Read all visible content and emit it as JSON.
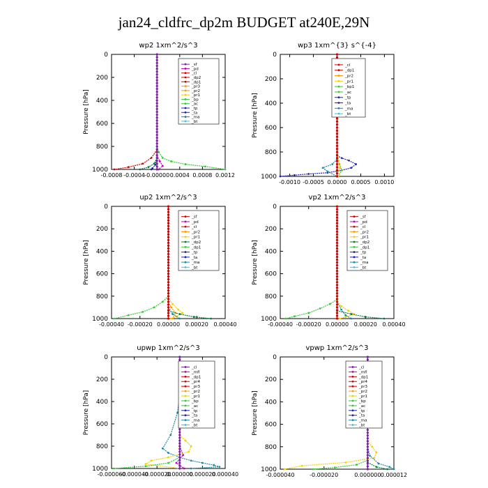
{
  "title": "jan24_cldfrc_dp2m  BUDGET at240E,29N",
  "colors": {
    "purple": "#7a1fa2",
    "magenta": "#c000c0",
    "red": "#d40000",
    "orange": "#ff9a00",
    "yellow": "#f2d000",
    "green": "#33cc33",
    "darkgreen": "#007a3d",
    "blue": "#2020c0",
    "teal": "#1a8aa0",
    "cyan": "#33c8e8"
  },
  "chart_data": [
    {
      "type": "line",
      "title": "wp2   1xm^2/s^3",
      "ylabel": "Pressure  [hPa]",
      "xlim": [
        -0.0008,
        0.0012
      ],
      "ylim": [
        1000,
        0
      ],
      "xticks": [
        "-0.0008",
        "-0.0004",
        "-0.00000",
        "0.0004",
        "0.0008",
        "0.0012"
      ],
      "xtick_values": [
        -0.0008,
        -0.0004,
        0,
        0.0004,
        0.0008,
        0.0012
      ],
      "yticks": [
        "0",
        "200",
        "400",
        "600",
        "800",
        "1000"
      ],
      "legend": [
        "_sf",
        "_pd",
        "_cl",
        "_dp2",
        "_dp1",
        "_pr3",
        "_pr2",
        "_pr1",
        "_bp",
        "_ac",
        "_tp",
        "_ta",
        "_ma",
        "_bt"
      ],
      "legend_colors": [
        "purple",
        "magenta",
        "red",
        "red",
        "red",
        "orange",
        "orange",
        "yellow",
        "green",
        "green",
        "blue",
        "blue",
        "teal",
        "cyan"
      ],
      "series": [
        {
          "color": "green",
          "x": [
            0,
            3e-05,
            0.0001,
            0.00025,
            0.0005,
            0.00085,
            0.0012
          ],
          "y": [
            800,
            850,
            900,
            930,
            955,
            975,
            1000
          ]
        },
        {
          "color": "red",
          "x": [
            0,
            -0.0001,
            -0.00025,
            -0.0005,
            -0.00075
          ],
          "y": [
            830,
            900,
            950,
            980,
            1000
          ]
        },
        {
          "color": "darkgreen",
          "x": [
            0,
            -5e-05,
            -0.00015,
            -0.0003
          ],
          "y": [
            900,
            950,
            980,
            1000
          ]
        },
        {
          "color": "magenta",
          "x": [
            0,
            5e-05,
            0.0001,
            3e-05
          ],
          "y": [
            880,
            930,
            970,
            1000
          ]
        },
        {
          "color": "blue",
          "x": [
            0,
            -3e-05,
            -8e-05,
            -0.0001
          ],
          "y": [
            900,
            960,
            990,
            1000
          ]
        },
        {
          "color": "purple",
          "x": [
            0,
            0,
            0,
            0
          ],
          "y": [
            0,
            400,
            800,
            1000
          ]
        }
      ]
    },
    {
      "type": "line",
      "title": "wp3   1xm^{3} s^{-4}",
      "ylabel": "Pressure  [hPa]",
      "xlim": [
        -0.0012,
        0.0012
      ],
      "ylim": [
        1000,
        0
      ],
      "xticks": [
        "-0.0010",
        "-0.0005",
        "0.0000",
        "0.0005",
        "0.0010"
      ],
      "xtick_values": [
        -0.001,
        -0.0005,
        0,
        0.0005,
        0.001
      ],
      "yticks": [
        "0",
        "200",
        "400",
        "600",
        "800",
        "1000"
      ],
      "legend": [
        "_cl",
        "_dp1",
        "_pr2",
        "_pr1",
        "_bp1",
        "_ac",
        "_tp",
        "_ta",
        "_ma",
        "_bt"
      ],
      "legend_colors": [
        "red",
        "red",
        "orange",
        "yellow",
        "green",
        "green",
        "blue",
        "blue",
        "teal",
        "cyan"
      ],
      "series": [
        {
          "color": "blue",
          "x": [
            0,
            0.0001,
            0.00025,
            0.0004,
            0.0003,
            0.0001,
            -0.0002,
            -0.0006,
            -0.0009,
            -0.0012
          ],
          "y": [
            830,
            850,
            870,
            900,
            930,
            950,
            970,
            980,
            990,
            1000
          ]
        },
        {
          "color": "teal",
          "x": [
            0,
            -0.0001,
            -0.0003,
            -0.0002,
            0
          ],
          "y": [
            860,
            900,
            930,
            960,
            1000
          ]
        },
        {
          "color": "green",
          "x": [
            0,
            5e-05,
            0.0001,
            3e-05
          ],
          "y": [
            850,
            900,
            950,
            1000
          ]
        },
        {
          "color": "yellow",
          "x": [
            0,
            3e-05,
            6e-05,
            2e-05
          ],
          "y": [
            800,
            870,
            930,
            1000
          ]
        },
        {
          "color": "red",
          "x": [
            0,
            0,
            0,
            0
          ],
          "y": [
            0,
            400,
            800,
            1000
          ]
        }
      ]
    },
    {
      "type": "line",
      "title": "up2   1xm^2/s^3",
      "ylabel": "Pressure  [hPa]",
      "xlim": [
        -0.0004,
        0.0004
      ],
      "ylim": [
        1000,
        0
      ],
      "xticks": [
        "-0.00040",
        "-0.00020",
        "0.00000",
        "0.00020",
        "0.00040"
      ],
      "xtick_values": [
        -0.0004,
        -0.0002,
        0,
        0.0002,
        0.0004
      ],
      "yticks": [
        "0",
        "200",
        "400",
        "600",
        "800",
        "1000"
      ],
      "legend": [
        "_sf",
        "_pd",
        "_cl",
        "_pr2",
        "_pr1",
        "_dp2",
        "_dp1",
        "_tp",
        "_ta",
        "_ma",
        "_bt"
      ],
      "legend_colors": [
        "red",
        "magenta",
        "red",
        "orange",
        "yellow",
        "darkgreen",
        "green",
        "blue",
        "blue",
        "teal",
        "cyan"
      ],
      "series": [
        {
          "color": "green",
          "x": [
            0,
            -4e-05,
            -0.0001,
            -0.00018,
            -0.00028,
            -0.00038
          ],
          "y": [
            800,
            850,
            900,
            940,
            970,
            1000
          ]
        },
        {
          "color": "yellow",
          "x": [
            0,
            3e-05,
            7e-05,
            0.0001,
            6e-05,
            2e-05
          ],
          "y": [
            820,
            870,
            920,
            950,
            980,
            1000
          ]
        },
        {
          "color": "orange",
          "x": [
            0,
            2e-05,
            5e-05,
            3e-05
          ],
          "y": [
            850,
            900,
            950,
            1000
          ]
        },
        {
          "color": "darkgreen",
          "x": [
            0,
            8e-05,
            0.00018,
            0.0003
          ],
          "y": [
            930,
            960,
            985,
            1000
          ]
        },
        {
          "color": "teal",
          "x": [
            0,
            3e-05,
            8e-05
          ],
          "y": [
            900,
            960,
            1000
          ]
        },
        {
          "color": "red",
          "x": [
            0,
            0,
            0,
            0
          ],
          "y": [
            0,
            400,
            800,
            1000
          ]
        }
      ]
    },
    {
      "type": "line",
      "title": "vp2   1xm^2/s^3",
      "ylabel": "Pressure  [hPa]",
      "xlim": [
        -0.0004,
        0.0004
      ],
      "ylim": [
        1000,
        0
      ],
      "xticks": [
        "-0.00040",
        "-0.00020",
        "0.00000",
        "0.00020",
        "0.00040"
      ],
      "xtick_values": [
        -0.0004,
        -0.0002,
        0,
        0.0002,
        0.0004
      ],
      "yticks": [
        "0",
        "200",
        "400",
        "600",
        "800",
        "1000"
      ],
      "legend": [
        "_sf",
        "_pd",
        "_cl",
        "_pr2",
        "_pr1",
        "_dp2",
        "_dp1",
        "_tp",
        "_ta",
        "_ma",
        "_bt"
      ],
      "legend_colors": [
        "red",
        "magenta",
        "red",
        "orange",
        "yellow",
        "darkgreen",
        "green",
        "blue",
        "blue",
        "teal",
        "cyan"
      ],
      "series": [
        {
          "color": "green",
          "x": [
            0,
            -5e-05,
            -0.00012,
            -0.0002,
            -0.0003,
            -0.00036
          ],
          "y": [
            830,
            870,
            910,
            950,
            980,
            1000
          ]
        },
        {
          "color": "yellow",
          "x": [
            0,
            3e-05,
            8e-05,
            0.00012,
            6e-05,
            2e-05
          ],
          "y": [
            850,
            890,
            930,
            960,
            985,
            1000
          ]
        },
        {
          "color": "teal",
          "x": [
            0,
            3e-05,
            6e-05,
            0.0001
          ],
          "y": [
            850,
            920,
            970,
            1000
          ]
        },
        {
          "color": "darkgreen",
          "x": [
            0,
            0.0001,
            0.0002,
            0.00033
          ],
          "y": [
            930,
            960,
            985,
            1000
          ]
        },
        {
          "color": "red",
          "x": [
            0,
            0,
            0,
            0
          ],
          "y": [
            0,
            400,
            800,
            1000
          ]
        }
      ]
    },
    {
      "type": "line",
      "title": "upwp   1xm^2/s^3",
      "ylabel": "Pressure  [hPa]",
      "xlim": [
        -6e-05,
        4e-05
      ],
      "ylim": [
        1000,
        0
      ],
      "xticks": [
        "-0.000060",
        "-0.000040",
        "-0.000020",
        "0.000000",
        "0.000020",
        "0.000040"
      ],
      "xtick_values": [
        -6e-05,
        -4e-05,
        -2e-05,
        0,
        2e-05,
        4e-05
      ],
      "yticks": [
        "0",
        "200",
        "400",
        "600",
        "800",
        "1000"
      ],
      "legend": [
        "_cl",
        "_mfl",
        "_dp1",
        "_pr4",
        "_pr3",
        "_pr2",
        "_pr1",
        "_bp",
        "_ac",
        "_tp",
        "_ta",
        "_ma",
        "_bt"
      ],
      "legend_colors": [
        "purple",
        "magenta",
        "red",
        "red",
        "red",
        "orange",
        "yellow",
        "green",
        "green",
        "blue",
        "blue",
        "teal",
        "cyan"
      ],
      "series": [
        {
          "color": "teal",
          "x": [
            0,
            2e-06,
            -2e-06,
            -8e-06,
            -1.5e-05,
            -1e-05,
            0,
            1e-05,
            2e-05,
            3e-05,
            3.5e-05,
            1e-05
          ],
          "y": [
            0,
            200,
            500,
            700,
            820,
            860,
            900,
            930,
            950,
            970,
            985,
            1000
          ]
        },
        {
          "color": "yellow",
          "x": [
            0,
            5e-06,
            1e-05,
            8e-06,
            -1e-05,
            -2.5e-05,
            -3e-05,
            0
          ],
          "y": [
            700,
            750,
            800,
            850,
            900,
            930,
            960,
            1000
          ]
        },
        {
          "color": "green",
          "x": [
            0,
            -1e-05,
            -3e-05,
            -5.8e-05
          ],
          "y": [
            900,
            950,
            980,
            1000
          ]
        },
        {
          "color": "magenta",
          "x": [
            0,
            3e-06,
            -3e-06,
            4e-06
          ],
          "y": [
            800,
            880,
            950,
            1000
          ]
        },
        {
          "color": "purple",
          "x": [
            0,
            0,
            0,
            0
          ],
          "y": [
            0,
            400,
            800,
            1000
          ]
        }
      ]
    },
    {
      "type": "line",
      "title": "vpwp   1xm^2/s^3",
      "ylabel": "Pressure  [hPa]",
      "xlim": [
        -4e-05,
        1.2e-05
      ],
      "ylim": [
        1000,
        0
      ],
      "xticks": [
        "-0.000040",
        "-0.000020",
        "0.000000",
        "0.000012"
      ],
      "xtick_values": [
        -4e-05,
        -2e-05,
        0,
        1.2e-05
      ],
      "yticks": [
        "0",
        "200",
        "400",
        "600",
        "800",
        "1000"
      ],
      "legend": [
        "_cl",
        "_mfl",
        "_dp1",
        "_pr4",
        "_pr3",
        "_pr2",
        "_pr1",
        "_bp",
        "_ac",
        "_tp",
        "_ta",
        "_ma",
        "_bt"
      ],
      "legend_colors": [
        "purple",
        "magenta",
        "red",
        "red",
        "red",
        "orange",
        "yellow",
        "green",
        "green",
        "blue",
        "blue",
        "teal",
        "cyan"
      ],
      "series": [
        {
          "color": "yellow",
          "x": [
            0,
            2e-06,
            4e-06,
            3e-06,
            -1e-05,
            -3e-05,
            -3.8e-05
          ],
          "y": [
            750,
            800,
            850,
            900,
            940,
            970,
            1000
          ]
        },
        {
          "color": "teal",
          "x": [
            0,
            1e-06,
            5e-06,
            1e-05,
            1.2e-05
          ],
          "y": [
            800,
            880,
            950,
            980,
            1000
          ]
        },
        {
          "color": "green",
          "x": [
            0,
            -5e-06,
            -1.5e-05,
            -2.5e-05
          ],
          "y": [
            920,
            960,
            985,
            1000
          ]
        },
        {
          "color": "darkgreen",
          "x": [
            0,
            4e-06,
            9e-06
          ],
          "y": [
            940,
            980,
            1000
          ]
        },
        {
          "color": "purple",
          "x": [
            0,
            0,
            0,
            0
          ],
          "y": [
            0,
            400,
            800,
            1000
          ]
        }
      ]
    }
  ]
}
